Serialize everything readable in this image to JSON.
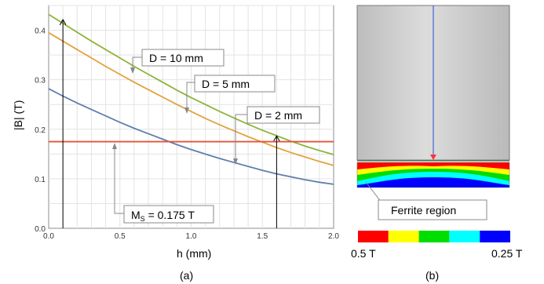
{
  "chart_data": {
    "type": "line",
    "caption": "(a)",
    "xlabel": "h (mm)",
    "ylabel": "|B| (T)",
    "xlim": [
      0,
      2.0
    ],
    "ylim": [
      0,
      0.45
    ],
    "x_ticks": [
      0,
      0.5,
      1.0,
      1.5,
      2.0
    ],
    "x_tick_labels": [
      "0.0",
      "0.5",
      "1.0",
      "1.5",
      "2.0"
    ],
    "y_ticks": [
      0,
      0.1,
      0.2,
      0.3,
      0.4
    ],
    "y_tick_labels": [
      "0.0",
      "0.1",
      "0.2",
      "0.3",
      "0.4"
    ],
    "grid": true,
    "x": [
      0,
      0.1,
      0.2,
      0.3,
      0.4,
      0.5,
      0.6,
      0.7,
      0.8,
      0.9,
      1.0,
      1.1,
      1.2,
      1.3,
      1.4,
      1.5,
      1.6,
      1.7,
      1.8,
      1.9,
      2.0
    ],
    "series": [
      {
        "label": "D = 10 mm",
        "color": "#8fb33a",
        "values": [
          0.432,
          0.414,
          0.396,
          0.378,
          0.361,
          0.344,
          0.327,
          0.311,
          0.295,
          0.279,
          0.264,
          0.25,
          0.236,
          0.223,
          0.21,
          0.198,
          0.187,
          0.176,
          0.166,
          0.157,
          0.149
        ]
      },
      {
        "label": "D = 5 mm",
        "color": "#e3a23c",
        "values": [
          0.395,
          0.378,
          0.361,
          0.344,
          0.327,
          0.311,
          0.295,
          0.28,
          0.265,
          0.25,
          0.236,
          0.222,
          0.209,
          0.197,
          0.185,
          0.174,
          0.163,
          0.153,
          0.144,
          0.135,
          0.127
        ]
      },
      {
        "label": "D = 2 mm",
        "color": "#5e7fae",
        "values": [
          0.282,
          0.267,
          0.253,
          0.24,
          0.227,
          0.214,
          0.202,
          0.191,
          0.18,
          0.169,
          0.159,
          0.15,
          0.141,
          0.133,
          0.125,
          0.117,
          0.11,
          0.104,
          0.098,
          0.093,
          0.089
        ]
      },
      {
        "label_main": "M",
        "label_sub": "S",
        "label_rest": " = 0.175 T",
        "color": "#e0543a",
        "values": [
          0.175,
          0.175,
          0.175,
          0.175,
          0.175,
          0.175,
          0.175,
          0.175,
          0.175,
          0.175,
          0.175,
          0.175,
          0.175,
          0.175,
          0.175,
          0.175,
          0.175,
          0.175,
          0.175,
          0.175,
          0.175
        ]
      }
    ],
    "arrows": [
      {
        "x": 0.1,
        "y_from": 0,
        "y_to": 0.42
      },
      {
        "x": 1.6,
        "y_from": 0,
        "y_to": 0.185
      }
    ]
  },
  "panel_b": {
    "caption": "(b)",
    "region_label": "Ferrite region",
    "scale_max_label": "0.5 T",
    "scale_min_label": "0.25 T",
    "scale_colors": [
      "#ff0000",
      "#ffff00",
      "#00dd00",
      "#00ffff",
      "#0000ff"
    ]
  }
}
